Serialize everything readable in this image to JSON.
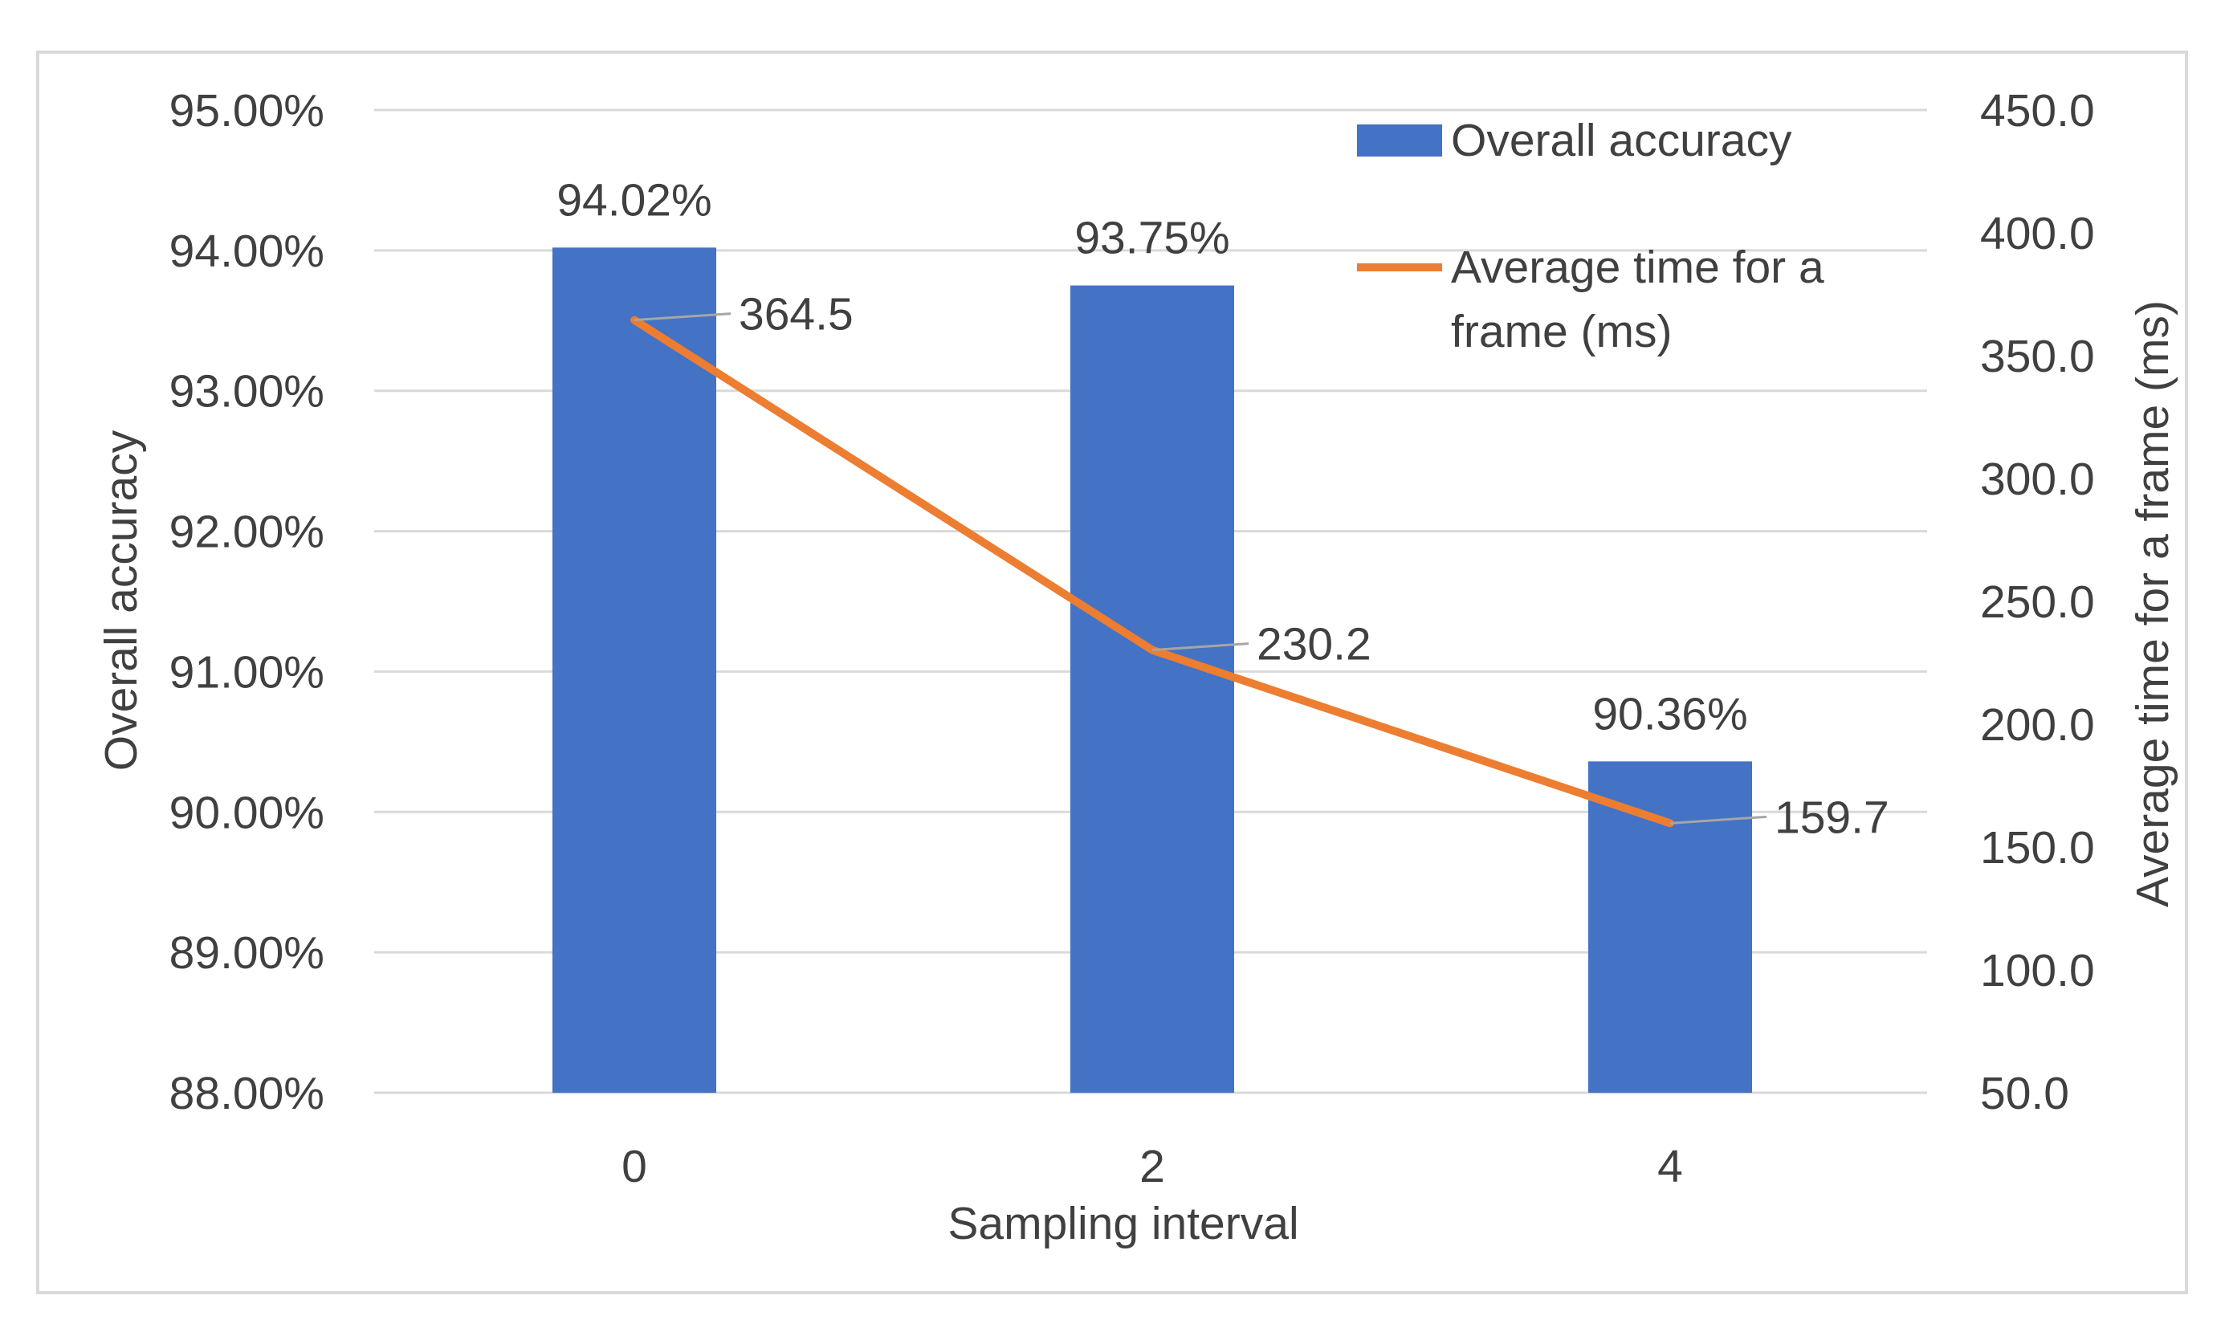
{
  "colors": {
    "bar": "#4472C4",
    "line": "#ED7D31",
    "grid": "#D9D9D9",
    "text": "#404040",
    "leader": "#A6A6A6",
    "frame": "#D9D9D9"
  },
  "chart_data": {
    "type": "bar",
    "title": "",
    "xlabel": "Sampling interval",
    "ylabel": "Overall accuracy",
    "y2label": "Average time for a frame (ms)",
    "categories": [
      "0",
      "2",
      "4"
    ],
    "ylim": [
      88,
      95
    ],
    "y2lim": [
      50,
      450
    ],
    "yticks": [
      "88.00%",
      "89.00%",
      "90.00%",
      "91.00%",
      "92.00%",
      "93.00%",
      "94.00%",
      "95.00%"
    ],
    "y2ticks": [
      "50.0",
      "100.0",
      "150.0",
      "200.0",
      "250.0",
      "300.0",
      "350.0",
      "400.0",
      "450.0"
    ],
    "grid": true,
    "legend_position": "top-right",
    "series": [
      {
        "name": "Overall accuracy",
        "kind": "bar",
        "axis": "left",
        "values": [
          94.02,
          93.75,
          90.36
        ],
        "labels": [
          "94.02%",
          "93.75%",
          "90.36%"
        ]
      },
      {
        "name": "Average time for a frame (ms)",
        "kind": "line",
        "axis": "right",
        "values": [
          364.5,
          230.2,
          159.7
        ],
        "labels": [
          "364.5",
          "230.2",
          "159.7"
        ]
      }
    ],
    "legend": {
      "bar_label": "Overall accuracy",
      "line_label_1": "Average time for a",
      "line_label_2": "frame (ms)"
    }
  }
}
